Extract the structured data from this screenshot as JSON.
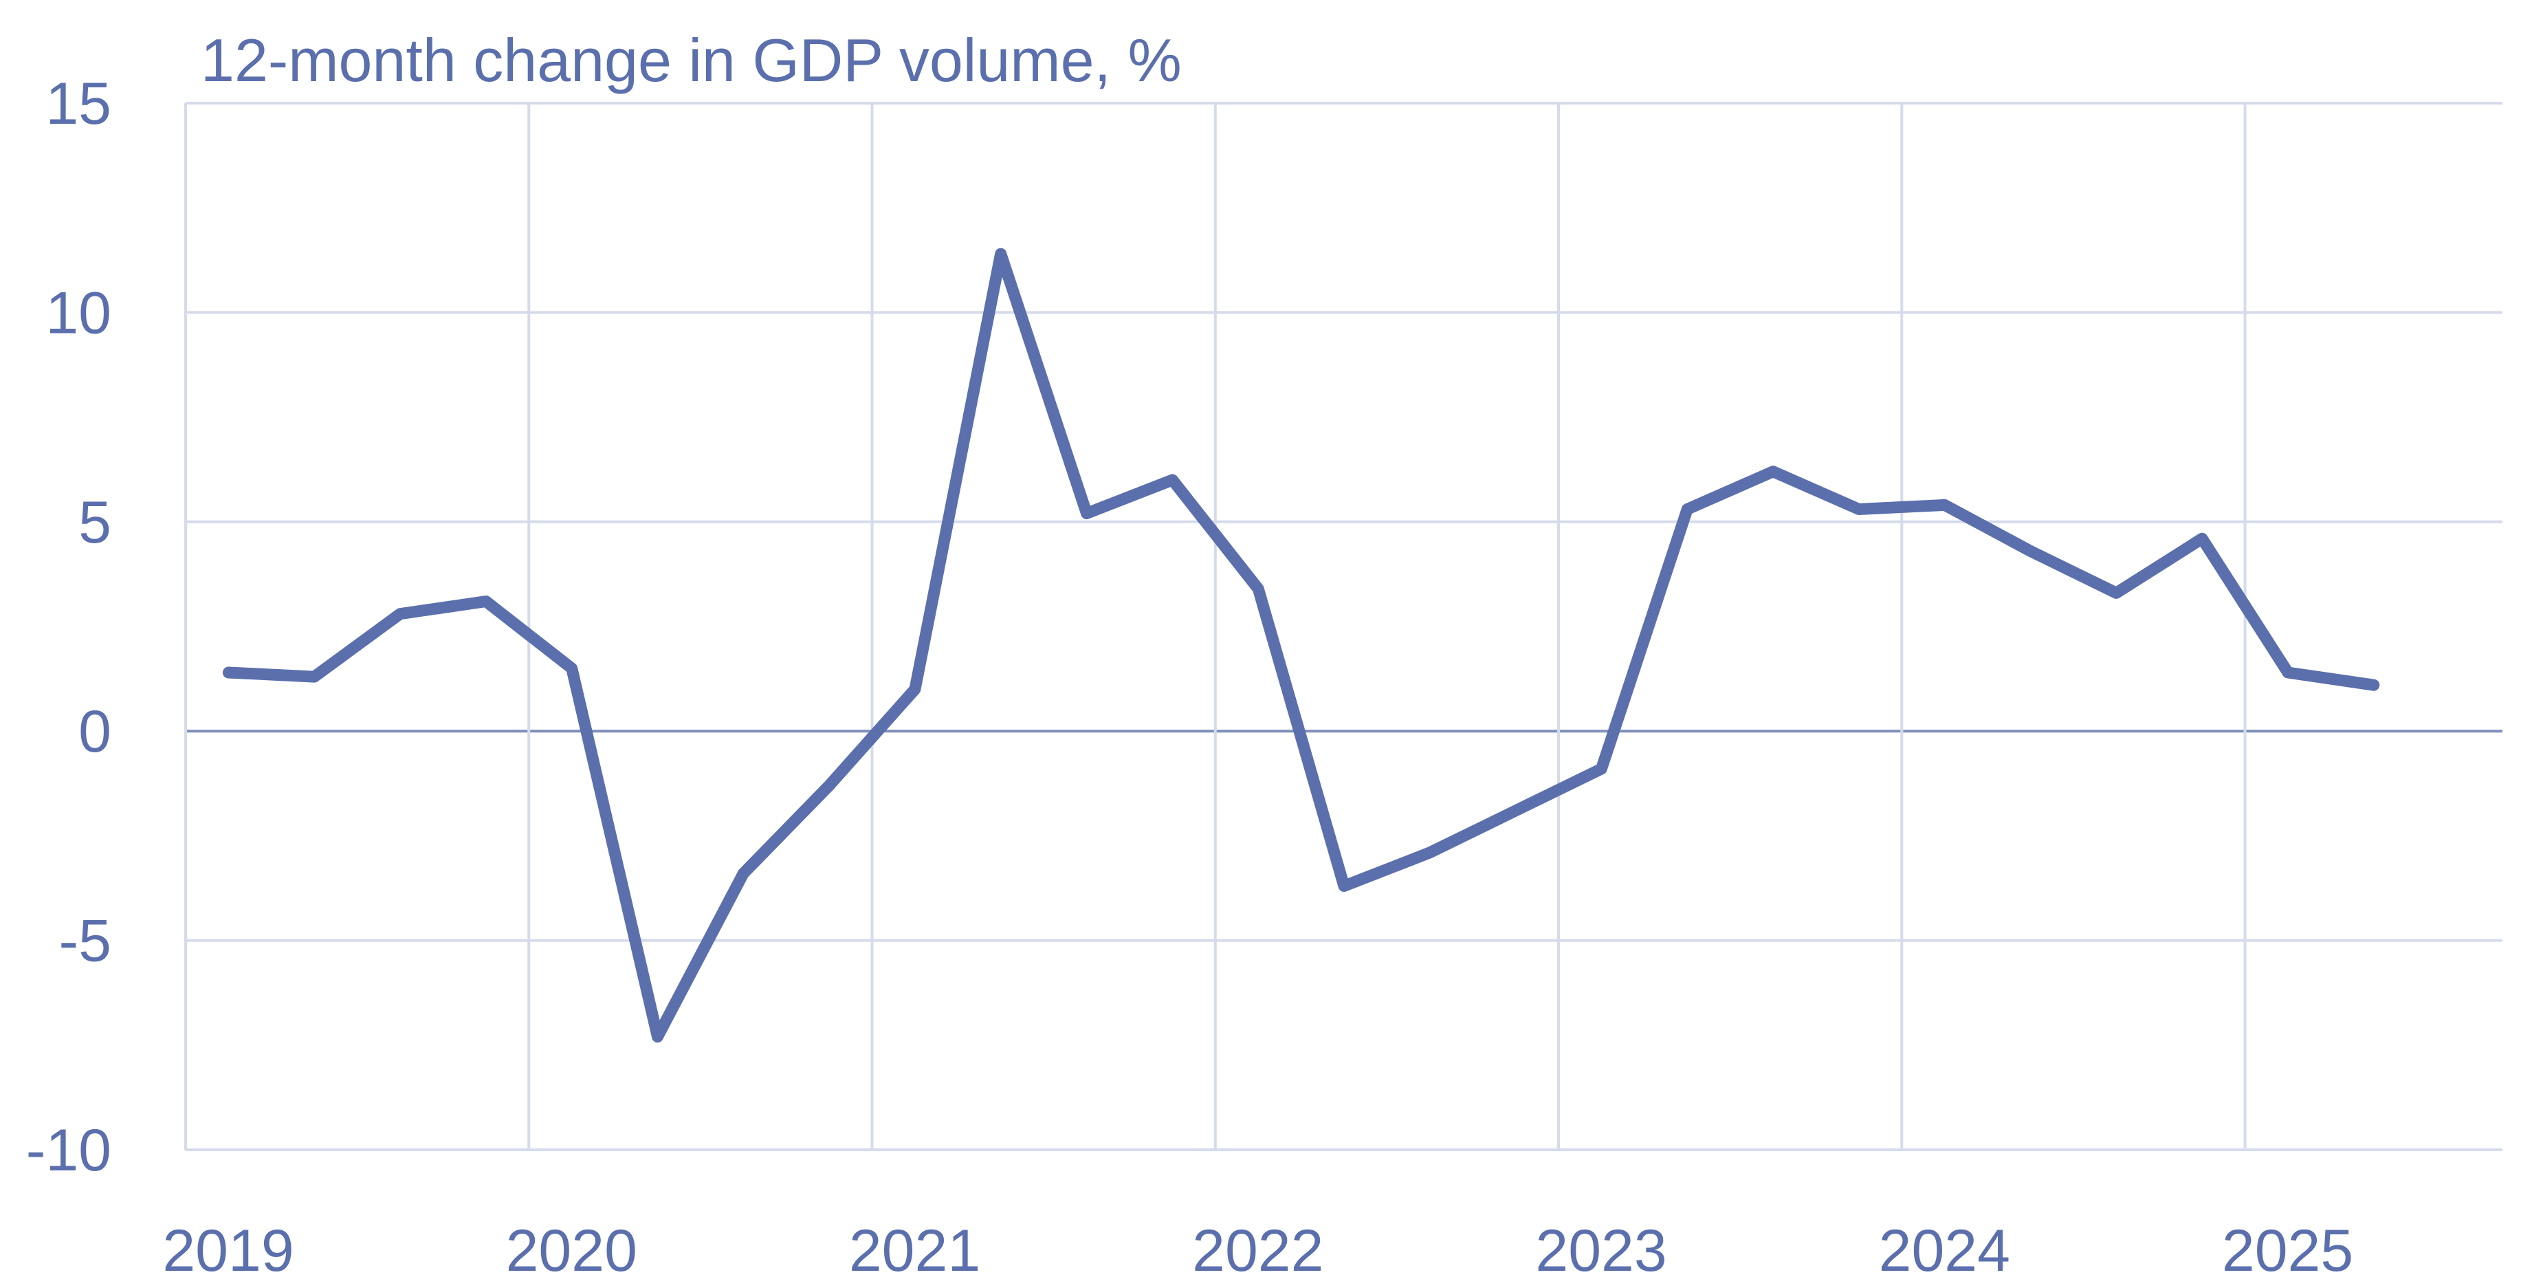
{
  "chart_data": {
    "type": "line",
    "title": "12-month change in GDP volume, %",
    "xlabel": "",
    "ylabel": "",
    "ylim": [
      -10,
      15
    ],
    "yticks": [
      15,
      10,
      5,
      0,
      -5,
      -10
    ],
    "xlim": [
      2019,
      2025.75
    ],
    "xticks": [
      "2019",
      "2020",
      "2021",
      "2022",
      "2023",
      "2024",
      "2025"
    ],
    "grid": true,
    "legend": "none",
    "colors": {
      "series": "#5b6fad",
      "text": "#5b6fad",
      "grid": "#d5dbea",
      "zero_line": "#7f8fb8"
    },
    "series": [
      {
        "name": "",
        "x": [
          2019.125,
          2019.375,
          2019.625,
          2019.875,
          2020.125,
          2020.375,
          2020.625,
          2020.875,
          2021.125,
          2021.375,
          2021.625,
          2021.875,
          2022.125,
          2022.375,
          2022.625,
          2022.875,
          2023.125,
          2023.375,
          2023.625,
          2023.875,
          2024.125,
          2024.375,
          2024.625,
          2024.875,
          2025.125,
          2025.375
        ],
        "values": [
          1.4,
          1.3,
          2.8,
          3.1,
          1.5,
          -7.3,
          -3.4,
          -1.3,
          1.0,
          11.4,
          5.2,
          6.0,
          3.4,
          -3.7,
          -2.9,
          -1.9,
          -0.9,
          5.3,
          6.2,
          5.3,
          5.4,
          4.3,
          3.3,
          4.6,
          1.4,
          1.1
        ]
      }
    ]
  }
}
